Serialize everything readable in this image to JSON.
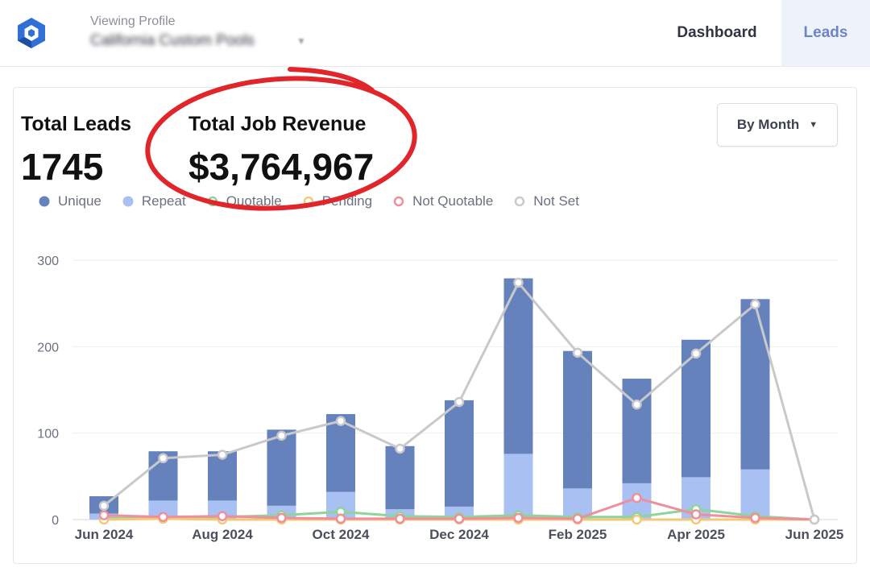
{
  "header": {
    "logo_icon": "hexagon-logo-icon",
    "profile_caption": "Viewing Profile",
    "profile_name": "California Custom Pools",
    "nav": {
      "dashboard": "Dashboard",
      "leads": "Leads"
    },
    "active_color": "#6b86c4"
  },
  "stats": {
    "total_leads_label": "Total Leads",
    "total_leads_value": "1745",
    "total_revenue_label": "Total Job Revenue",
    "total_revenue_value": "$3,764,967"
  },
  "controls": {
    "period_select": "By Month"
  },
  "annotation": {
    "type": "red-ellipse-highlight",
    "target": "total-job-revenue",
    "color": "#e0262b"
  },
  "chart_data": {
    "type": "bar",
    "stacked": true,
    "categories": [
      "Jun 2024",
      "Jul 2024",
      "Aug 2024",
      "Sep 2024",
      "Oct 2024",
      "Nov 2024",
      "Dec 2024",
      "Jan 2025",
      "Feb 2025",
      "Mar 2025",
      "Apr 2025",
      "May 2025",
      "Jun 2025"
    ],
    "x_tick_labels": [
      "Jun 2024",
      "Aug 2024",
      "Oct 2024",
      "Dec 2024",
      "Feb 2025",
      "Apr 2025",
      "Jun 2025"
    ],
    "ylim": [
      0,
      300
    ],
    "yticks": [
      0,
      100,
      200,
      300
    ],
    "grid": true,
    "legend_position": "top-left",
    "series": [
      {
        "name": "Unique",
        "kind": "bar",
        "color": "#6582bd",
        "values": [
          20,
          57,
          57,
          88,
          90,
          73,
          123,
          203,
          159,
          121,
          159,
          197,
          0
        ]
      },
      {
        "name": "Repeat",
        "kind": "bar",
        "color": "#a9c1f2",
        "values": [
          7,
          22,
          22,
          16,
          32,
          12,
          15,
          76,
          36,
          42,
          49,
          58,
          0
        ]
      },
      {
        "name": "Quotable",
        "kind": "line",
        "color": "#8fd49a",
        "values": [
          1,
          3,
          3,
          5,
          9,
          4,
          3,
          5,
          3,
          3,
          12,
          4,
          0
        ]
      },
      {
        "name": "Pending",
        "kind": "line",
        "color": "#f3c978",
        "values": [
          0,
          1,
          0,
          0,
          0,
          0,
          0,
          0,
          0,
          0,
          0,
          0,
          0
        ]
      },
      {
        "name": "Not Quotable",
        "kind": "line",
        "color": "#ef8e9c",
        "values": [
          5,
          3,
          4,
          2,
          1,
          1,
          1,
          2,
          1,
          25,
          6,
          2,
          0
        ]
      },
      {
        "name": "Not Set",
        "kind": "line",
        "color": "#c9c9cc",
        "values": [
          16,
          71,
          75,
          97,
          114,
          82,
          136,
          274,
          193,
          133,
          192,
          249,
          0
        ]
      }
    ]
  }
}
